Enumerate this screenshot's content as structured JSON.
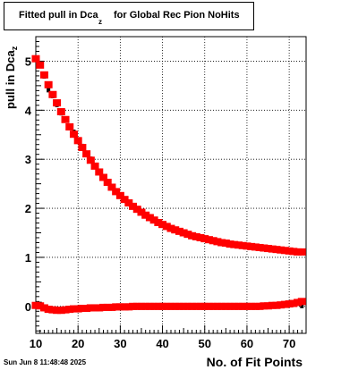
{
  "title": {
    "main": "Fitted pull in Dca",
    "subscript": "z",
    "rest": "for Global Rec Pion NoHits"
  },
  "timestamp": "Sun Jun  8 11:48:48 2025",
  "colors": {
    "series_red": "#ff0000",
    "series_black": "#000000",
    "grid": "#000000"
  },
  "chart_data": {
    "type": "scatter",
    "title": "Fitted pull in Dca_z for Global Rec Pion NoHits",
    "xlabel": "No. of Fit Points",
    "ylabel": "pull in Dca",
    "ylabel_subscript": "z",
    "xlim": [
      10,
      74
    ],
    "ylim": [
      -0.55,
      5.5
    ],
    "xticks": [
      10,
      20,
      30,
      40,
      50,
      60,
      70
    ],
    "yticks": [
      0,
      1,
      2,
      3,
      4,
      5
    ],
    "grid": true,
    "legend": "none",
    "x": [
      10,
      11,
      12,
      13,
      14,
      15,
      16,
      17,
      18,
      19,
      20,
      21,
      22,
      23,
      24,
      25,
      26,
      27,
      28,
      29,
      30,
      31,
      32,
      33,
      34,
      35,
      36,
      37,
      38,
      39,
      40,
      41,
      42,
      43,
      44,
      45,
      46,
      47,
      48,
      49,
      50,
      51,
      52,
      53,
      54,
      55,
      56,
      57,
      58,
      59,
      60,
      61,
      62,
      63,
      64,
      65,
      66,
      67,
      68,
      69,
      70,
      71,
      72,
      73
    ],
    "series": [
      {
        "color": "#ff0000",
        "marker": "square",
        "sigma": [
          5.05,
          4.92,
          4.72,
          4.52,
          4.32,
          4.15,
          3.97,
          3.81,
          3.66,
          3.51,
          3.38,
          3.24,
          3.11,
          2.98,
          2.86,
          2.74,
          2.63,
          2.53,
          2.43,
          2.34,
          2.26,
          2.18,
          2.11,
          2.04,
          1.98,
          1.92,
          1.86,
          1.81,
          1.76,
          1.71,
          1.67,
          1.63,
          1.59,
          1.56,
          1.53,
          1.5,
          1.47,
          1.44,
          1.42,
          1.4,
          1.38,
          1.36,
          1.34,
          1.32,
          1.3,
          1.29,
          1.27,
          1.26,
          1.25,
          1.24,
          1.23,
          1.22,
          1.21,
          1.2,
          1.19,
          1.18,
          1.17,
          1.16,
          1.15,
          1.14,
          1.13,
          1.12,
          1.11,
          1.11
        ],
        "mean": [
          0.02,
          0.01,
          -0.03,
          -0.06,
          -0.07,
          -0.08,
          -0.08,
          -0.07,
          -0.06,
          -0.05,
          -0.05,
          -0.04,
          -0.04,
          -0.03,
          -0.03,
          -0.03,
          -0.02,
          -0.02,
          -0.02,
          -0.01,
          -0.01,
          -0.01,
          -0.01,
          0.0,
          0.0,
          0.0,
          0.0,
          0.0,
          0.0,
          0.0,
          0.0,
          0.0,
          0.0,
          0.0,
          0.0,
          0.0,
          0.0,
          0.0,
          0.0,
          0.0,
          0.0,
          0.0,
          0.0,
          0.0,
          0.0,
          0.0,
          0.0,
          0.0,
          0.0,
          0.0,
          0.0,
          0.0,
          0.0,
          0.0,
          0.01,
          0.01,
          0.02,
          0.02,
          0.03,
          0.04,
          0.05,
          0.06,
          0.08,
          0.1
        ]
      },
      {
        "color": "#000000",
        "marker": "dot",
        "sigma": [
          5.04,
          4.9,
          4.68,
          4.4,
          4.28,
          4.1,
          3.93,
          3.8,
          3.64,
          3.55,
          3.37,
          3.26,
          3.1,
          3.0,
          2.86,
          2.75,
          2.61,
          2.53,
          2.44,
          2.34,
          2.27,
          2.19,
          2.09,
          2.03,
          1.98,
          1.92,
          1.86,
          1.81,
          1.76,
          1.71,
          1.67,
          1.63,
          1.59,
          1.56,
          1.53,
          1.5,
          1.47,
          1.44,
          1.42,
          1.4,
          1.38,
          1.36,
          1.34,
          1.32,
          1.3,
          1.29,
          1.27,
          1.26,
          1.25,
          1.24,
          1.23,
          1.22,
          1.21,
          1.2,
          1.19,
          1.18,
          1.17,
          1.16,
          1.15,
          1.14,
          1.13,
          1.12,
          1.11,
          1.11
        ],
        "mean": [
          0.03,
          0.04,
          -0.03,
          -0.05,
          -0.06,
          -0.07,
          -0.07,
          -0.06,
          -0.05,
          -0.04,
          -0.04,
          -0.03,
          -0.03,
          -0.03,
          -0.02,
          -0.02,
          -0.02,
          -0.01,
          -0.01,
          -0.01,
          -0.01,
          0.0,
          0.0,
          0.0,
          0.0,
          0.0,
          0.0,
          0.0,
          0.0,
          0.0,
          0.0,
          0.0,
          0.0,
          0.0,
          0.0,
          0.0,
          0.0,
          0.0,
          0.0,
          0.0,
          0.0,
          0.0,
          0.0,
          0.0,
          0.0,
          0.0,
          0.0,
          0.0,
          0.0,
          0.0,
          0.0,
          0.0,
          0.0,
          0.0,
          0.0,
          0.01,
          0.02,
          0.02,
          0.03,
          0.03,
          0.04,
          0.05,
          0.05,
          0.0
        ]
      }
    ]
  }
}
